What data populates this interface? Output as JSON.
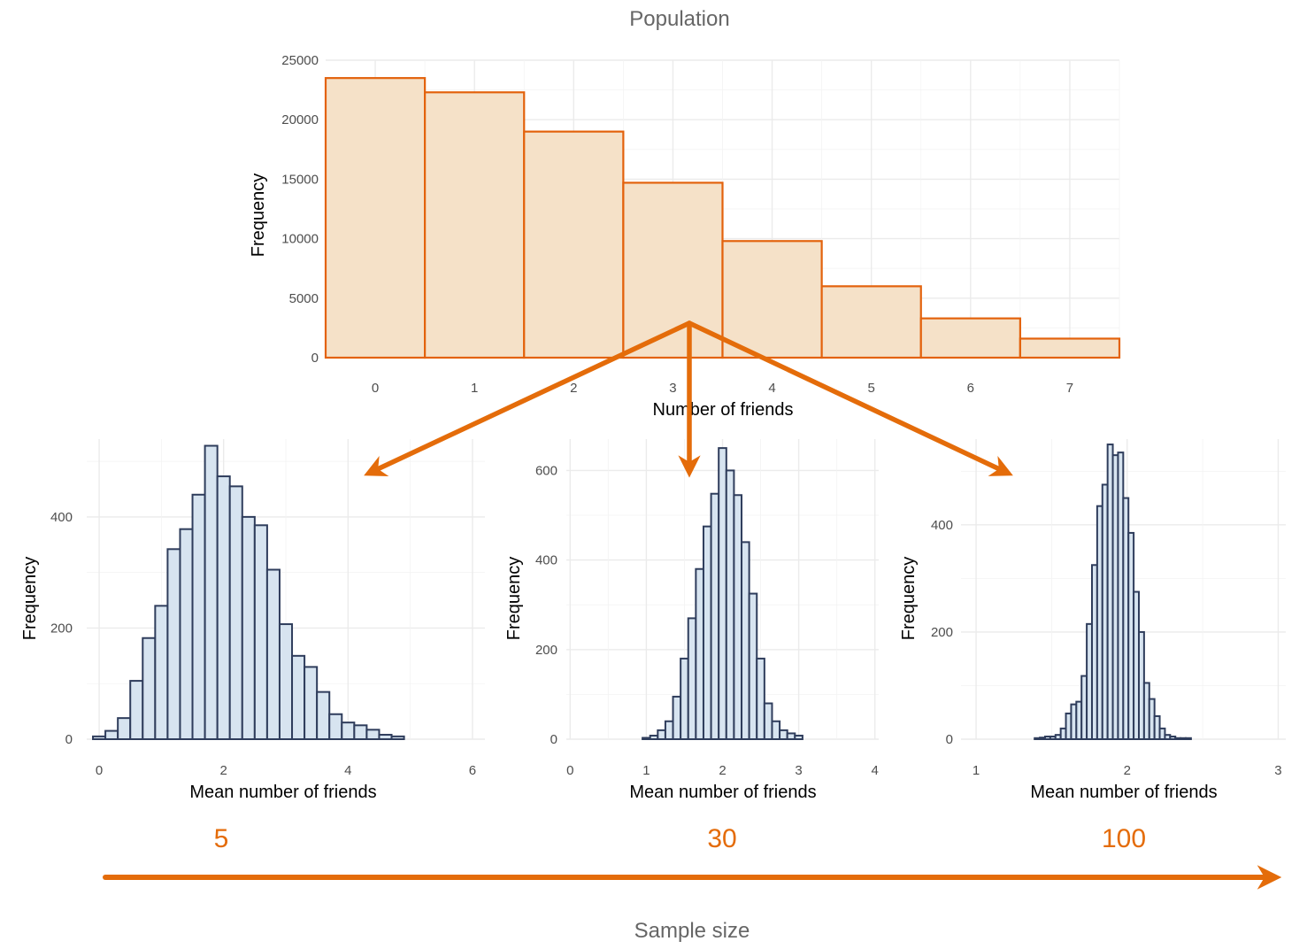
{
  "colors": {
    "accent": "#e46c0a",
    "population_fill": "#f5e1c8",
    "population_stroke": "#e3620c",
    "sample_fill": "#d7e4f0",
    "sample_stroke": "#2f3d5c",
    "title": "#666666"
  },
  "figure": {
    "title": "Population",
    "sample_size_axis_label": "Sample size"
  },
  "chart_data": [
    {
      "id": "population",
      "type": "bar",
      "title": "Population",
      "xlabel": "Number of friends",
      "ylabel": "Frequency",
      "categories": [
        "0",
        "1",
        "2",
        "3",
        "4",
        "5",
        "6",
        "7"
      ],
      "values": [
        23500,
        22300,
        19000,
        14700,
        9800,
        6000,
        3300,
        1600
      ],
      "xlim": [
        -0.5,
        7.5
      ],
      "ylim": [
        0,
        25000
      ],
      "yticks": [
        0,
        5000,
        10000,
        15000,
        20000,
        25000
      ],
      "ytick_labels": [
        "0",
        "5000",
        "10000",
        "15000",
        "20000",
        "25000"
      ],
      "grid": true
    },
    {
      "id": "sample-5",
      "type": "bar",
      "sample_size": "5",
      "xlabel": "Mean number of friends",
      "ylabel": "Frequency",
      "bin_start": -0.1,
      "bin_width": 0.2,
      "values": [
        5,
        15,
        38,
        105,
        182,
        240,
        342,
        378,
        440,
        528,
        473,
        455,
        400,
        385,
        305,
        207,
        150,
        130,
        85,
        45,
        30,
        25,
        17,
        8,
        5
      ],
      "xlim": [
        -0.2,
        6.2
      ],
      "ylim": [
        0,
        540
      ],
      "xticks": [
        0,
        2,
        4,
        6
      ],
      "xtick_labels": [
        "0",
        "2",
        "4",
        "6"
      ],
      "yticks": [
        0,
        200,
        400
      ],
      "ytick_labels": [
        "0",
        "200",
        "400"
      ],
      "grid": true
    },
    {
      "id": "sample-30",
      "type": "bar",
      "sample_size": "30",
      "xlabel": "Mean number of friends",
      "ylabel": "Frequency",
      "bin_start": 0.95,
      "bin_width": 0.1,
      "values": [
        3,
        8,
        20,
        40,
        95,
        180,
        270,
        380,
        475,
        548,
        650,
        600,
        545,
        440,
        325,
        180,
        80,
        40,
        20,
        13,
        8
      ],
      "xlim": [
        -0.05,
        4.05
      ],
      "ylim": [
        0,
        670
      ],
      "xticks": [
        0,
        1,
        2,
        3,
        4
      ],
      "xtick_labels": [
        "0",
        "1",
        "2",
        "3",
        "4"
      ],
      "yticks": [
        0,
        200,
        400,
        600
      ],
      "ytick_labels": [
        "0",
        "200",
        "400",
        "600"
      ],
      "grid": true
    },
    {
      "id": "sample-100",
      "type": "bar",
      "sample_size": "100",
      "xlabel": "Mean number of friends",
      "ylabel": "Frequency",
      "bin_start": 1.3875,
      "bin_width": 0.0345,
      "values": [
        2,
        3,
        5,
        5,
        8,
        20,
        48,
        65,
        70,
        118,
        215,
        325,
        435,
        475,
        550,
        530,
        535,
        450,
        385,
        275,
        200,
        105,
        75,
        43,
        20,
        8,
        5,
        2,
        2,
        2
      ],
      "xlim": [
        0.9,
        3.05
      ],
      "ylim": [
        0,
        560
      ],
      "xticks": [
        1,
        2,
        3
      ],
      "xtick_labels": [
        "1",
        "2",
        "3"
      ],
      "yticks": [
        0,
        200,
        400
      ],
      "ytick_labels": [
        "0",
        "200",
        "400"
      ],
      "grid": true
    }
  ]
}
